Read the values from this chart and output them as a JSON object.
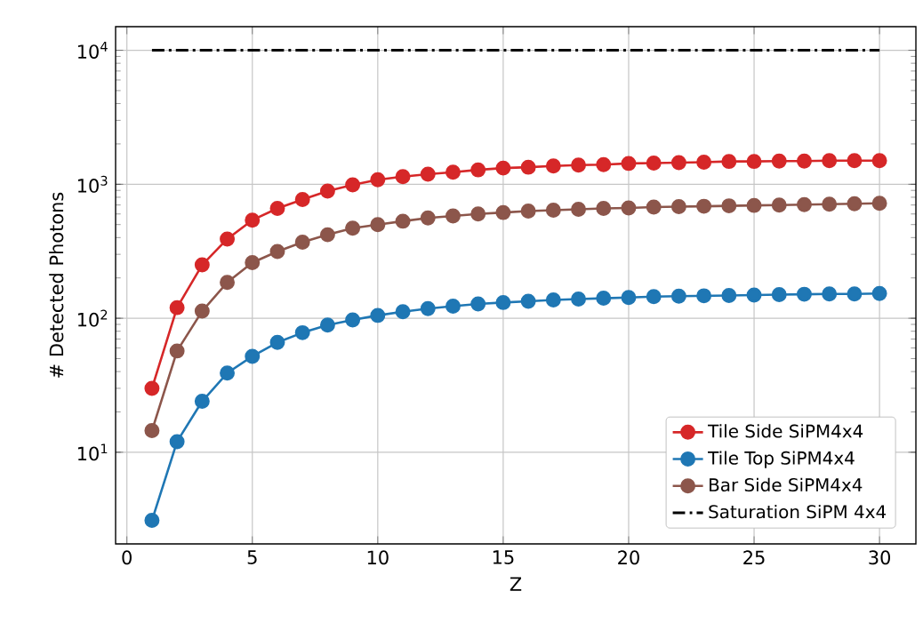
{
  "chart_data": {
    "type": "line",
    "xlabel": "Z",
    "ylabel": "# Detected Photons",
    "log": "y",
    "grid": true,
    "legend": "bottom right",
    "marker": "circle",
    "xlim": [
      -0.45,
      31.45
    ],
    "ylim": [
      2.07,
      15000
    ],
    "xticks": [
      0,
      5,
      10,
      15,
      20,
      25,
      30
    ],
    "yticks": [
      {
        "value": 10,
        "label": "10$^{1}$"
      },
      {
        "value": 100,
        "label": "10$^{2}$"
      },
      {
        "value": 1000,
        "label": "10$^{3}$"
      },
      {
        "value": 10000,
        "label": "10$^{4}$"
      }
    ],
    "x": [
      1,
      2,
      3,
      4,
      5,
      6,
      7,
      8,
      9,
      10,
      11,
      12,
      13,
      14,
      15,
      16,
      17,
      18,
      19,
      20,
      21,
      22,
      23,
      24,
      25,
      26,
      27,
      28,
      29,
      30
    ],
    "series": [
      {
        "name": "Tile Side SiPM4x4",
        "color": "#d62728",
        "values": [
          30,
          120,
          250,
          390,
          540,
          660,
          770,
          890,
          990,
          1080,
          1140,
          1190,
          1230,
          1280,
          1320,
          1340,
          1370,
          1390,
          1400,
          1430,
          1440,
          1450,
          1460,
          1480,
          1480,
          1490,
          1490,
          1500,
          1500,
          1500
        ]
      },
      {
        "name": "Tile Top SiPM4x4",
        "color": "#1f77b4",
        "values": [
          3.1,
          12,
          24,
          39,
          52,
          66,
          78,
          89,
          97,
          105,
          112,
          118,
          123,
          128,
          131,
          134,
          137,
          139,
          141,
          143,
          145,
          146,
          147,
          148,
          149,
          150,
          151,
          152,
          152,
          153
        ]
      },
      {
        "name": "Bar Side SiPM4x4",
        "color": "#8c564b",
        "values": [
          14.5,
          57,
          113,
          185,
          260,
          315,
          370,
          420,
          470,
          500,
          530,
          560,
          580,
          600,
          615,
          630,
          640,
          650,
          660,
          665,
          675,
          680,
          685,
          690,
          695,
          700,
          705,
          710,
          715,
          720
        ]
      },
      {
        "name": "Saturation SiPM 4x4",
        "color": "#000000",
        "type": "line",
        "marker": "none",
        "line_style": "dashdot",
        "x": [
          1,
          30
        ],
        "values": [
          10000,
          10000
        ]
      }
    ]
  }
}
